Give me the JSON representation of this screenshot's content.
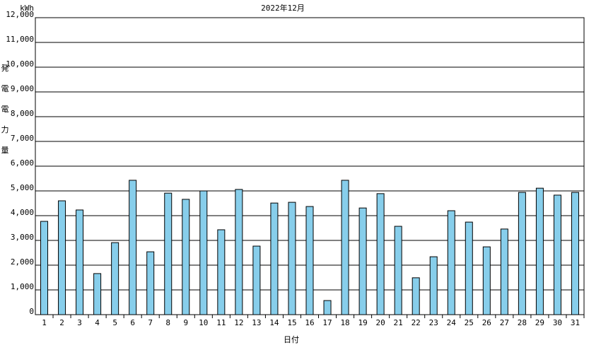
{
  "chart_data": {
    "type": "bar",
    "title": "2022年12月",
    "unit": "kWh",
    "y_label": "発電電力量",
    "x_label": "日付",
    "categories": [
      "1",
      "2",
      "3",
      "4",
      "5",
      "6",
      "7",
      "8",
      "9",
      "10",
      "11",
      "12",
      "13",
      "14",
      "15",
      "16",
      "17",
      "18",
      "19",
      "20",
      "21",
      "22",
      "23",
      "24",
      "25",
      "26",
      "27",
      "28",
      "29",
      "30",
      "31"
    ],
    "values": [
      3770,
      4600,
      4230,
      1660,
      2910,
      5430,
      2540,
      4910,
      4660,
      5000,
      3430,
      5060,
      2770,
      4510,
      4540,
      4370,
      570,
      5430,
      4310,
      4890,
      3570,
      1490,
      2340,
      4200,
      3740,
      2740,
      3460,
      4940,
      5110,
      4830,
      4940
    ],
    "color": "#87ceeb",
    "ylim": [
      0,
      12000
    ],
    "yticks": [
      0,
      {
        "value": 1000,
        "label": "1,000"
      },
      {
        "value": 2000,
        "label": "2,000"
      },
      {
        "value": 3000,
        "label": "3,000"
      },
      {
        "value": 4000,
        "label": "4,000"
      },
      {
        "value": 5000,
        "label": "5,000"
      },
      {
        "value": 6000,
        "label": "6,000"
      },
      {
        "value": 7000,
        "label": "7,000"
      },
      {
        "value": 8000,
        "label": "8,000"
      },
      {
        "value": 9000,
        "label": "9,000"
      },
      {
        "value": 10000,
        "label": "10,000"
      },
      {
        "value": 11000,
        "label": "11,000"
      },
      {
        "value": 12000,
        "label": "12,000"
      }
    ],
    "grid": true
  }
}
